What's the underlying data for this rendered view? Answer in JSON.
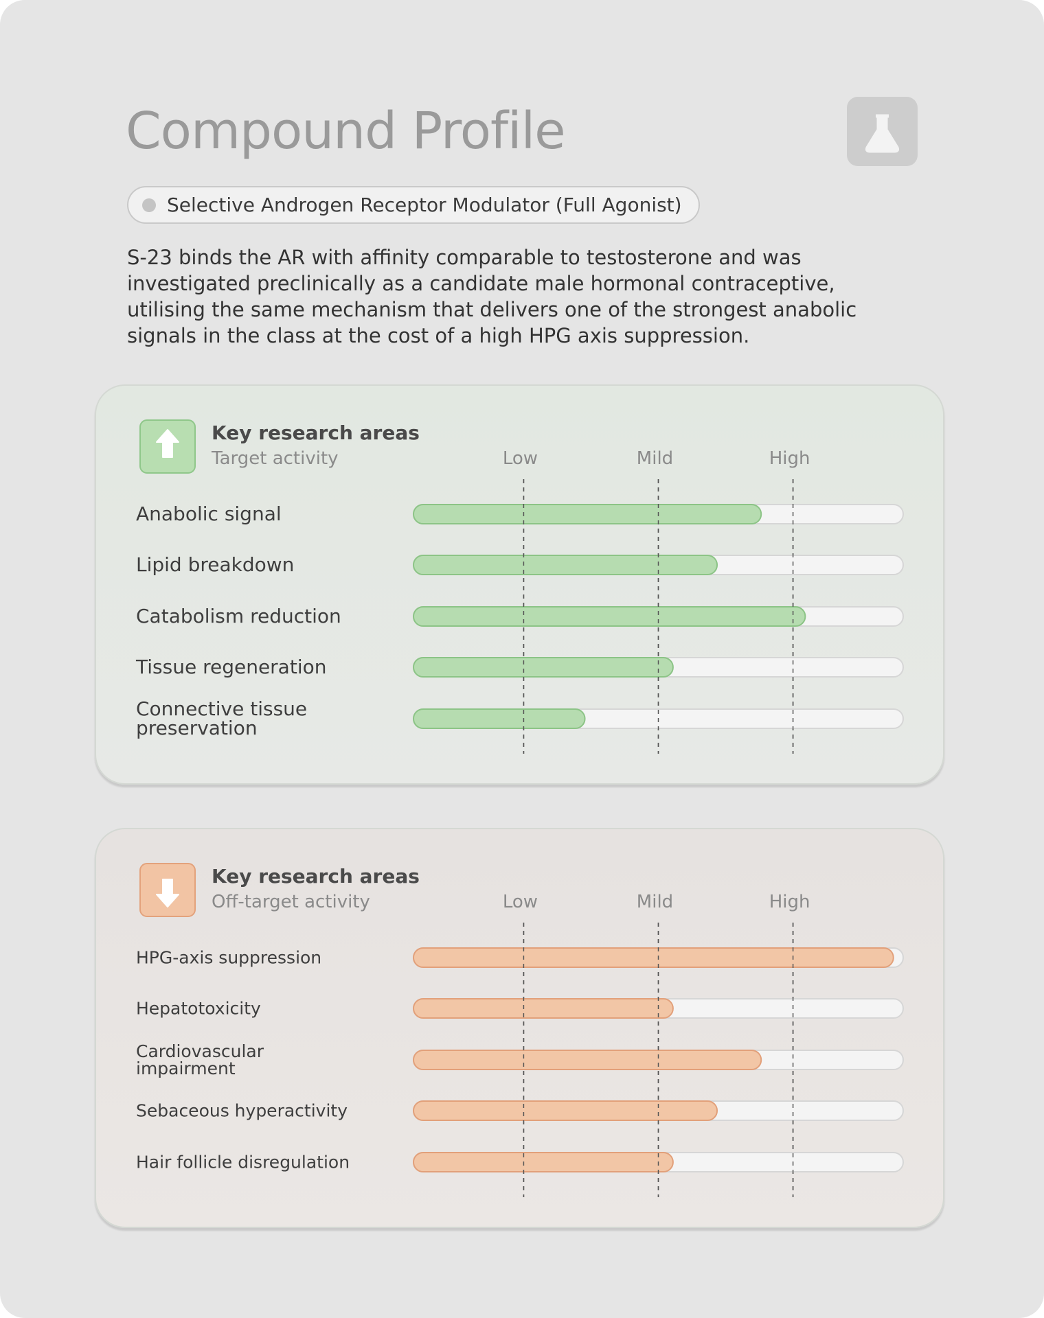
{
  "header": {
    "title": "Compound Profile",
    "tag": "Selective Androgen Receptor Modulator (Full Agonist)",
    "description": "S-23 binds the AR with affinity comparable to testosterone and was investigated preclinically as a candidate male hormonal contraceptive, utilising the same mechanism that delivers one of the strongest anabolic signals in the class at the cost of a high HPG axis suppression."
  },
  "chart_data": [
    {
      "type": "bar",
      "title": "Key research areas",
      "subtitle": "Target activity",
      "categories": [
        "Anabolic signal",
        "Lipid breakdown",
        "Catabolism reduction",
        "Tissue regeneration",
        "Connective tissue preservation"
      ],
      "values": [
        71,
        62,
        80,
        53,
        35
      ],
      "color": "#b6dcb0",
      "xlim": [
        0,
        100
      ],
      "xticks": [
        {
          "value": 22.5,
          "label": "Low"
        },
        {
          "value": 50,
          "label": "Mild"
        },
        {
          "value": 77.5,
          "label": "High"
        }
      ]
    },
    {
      "type": "bar",
      "title": "Key research areas",
      "subtitle": "Off-target activity",
      "categories": [
        "HPG-axis suppression",
        "Hepatotoxicity",
        "Cardiovascular impairment",
        "Sebaceous hyperactivity",
        "Hair follicle disregulation"
      ],
      "values": [
        98,
        53,
        71,
        62,
        53
      ],
      "color": "#f2c6a6",
      "xlim": [
        0,
        100
      ],
      "xticks": [
        {
          "value": 22.5,
          "label": "Low"
        },
        {
          "value": 50,
          "label": "Mild"
        },
        {
          "value": 77.5,
          "label": "High"
        }
      ]
    }
  ]
}
